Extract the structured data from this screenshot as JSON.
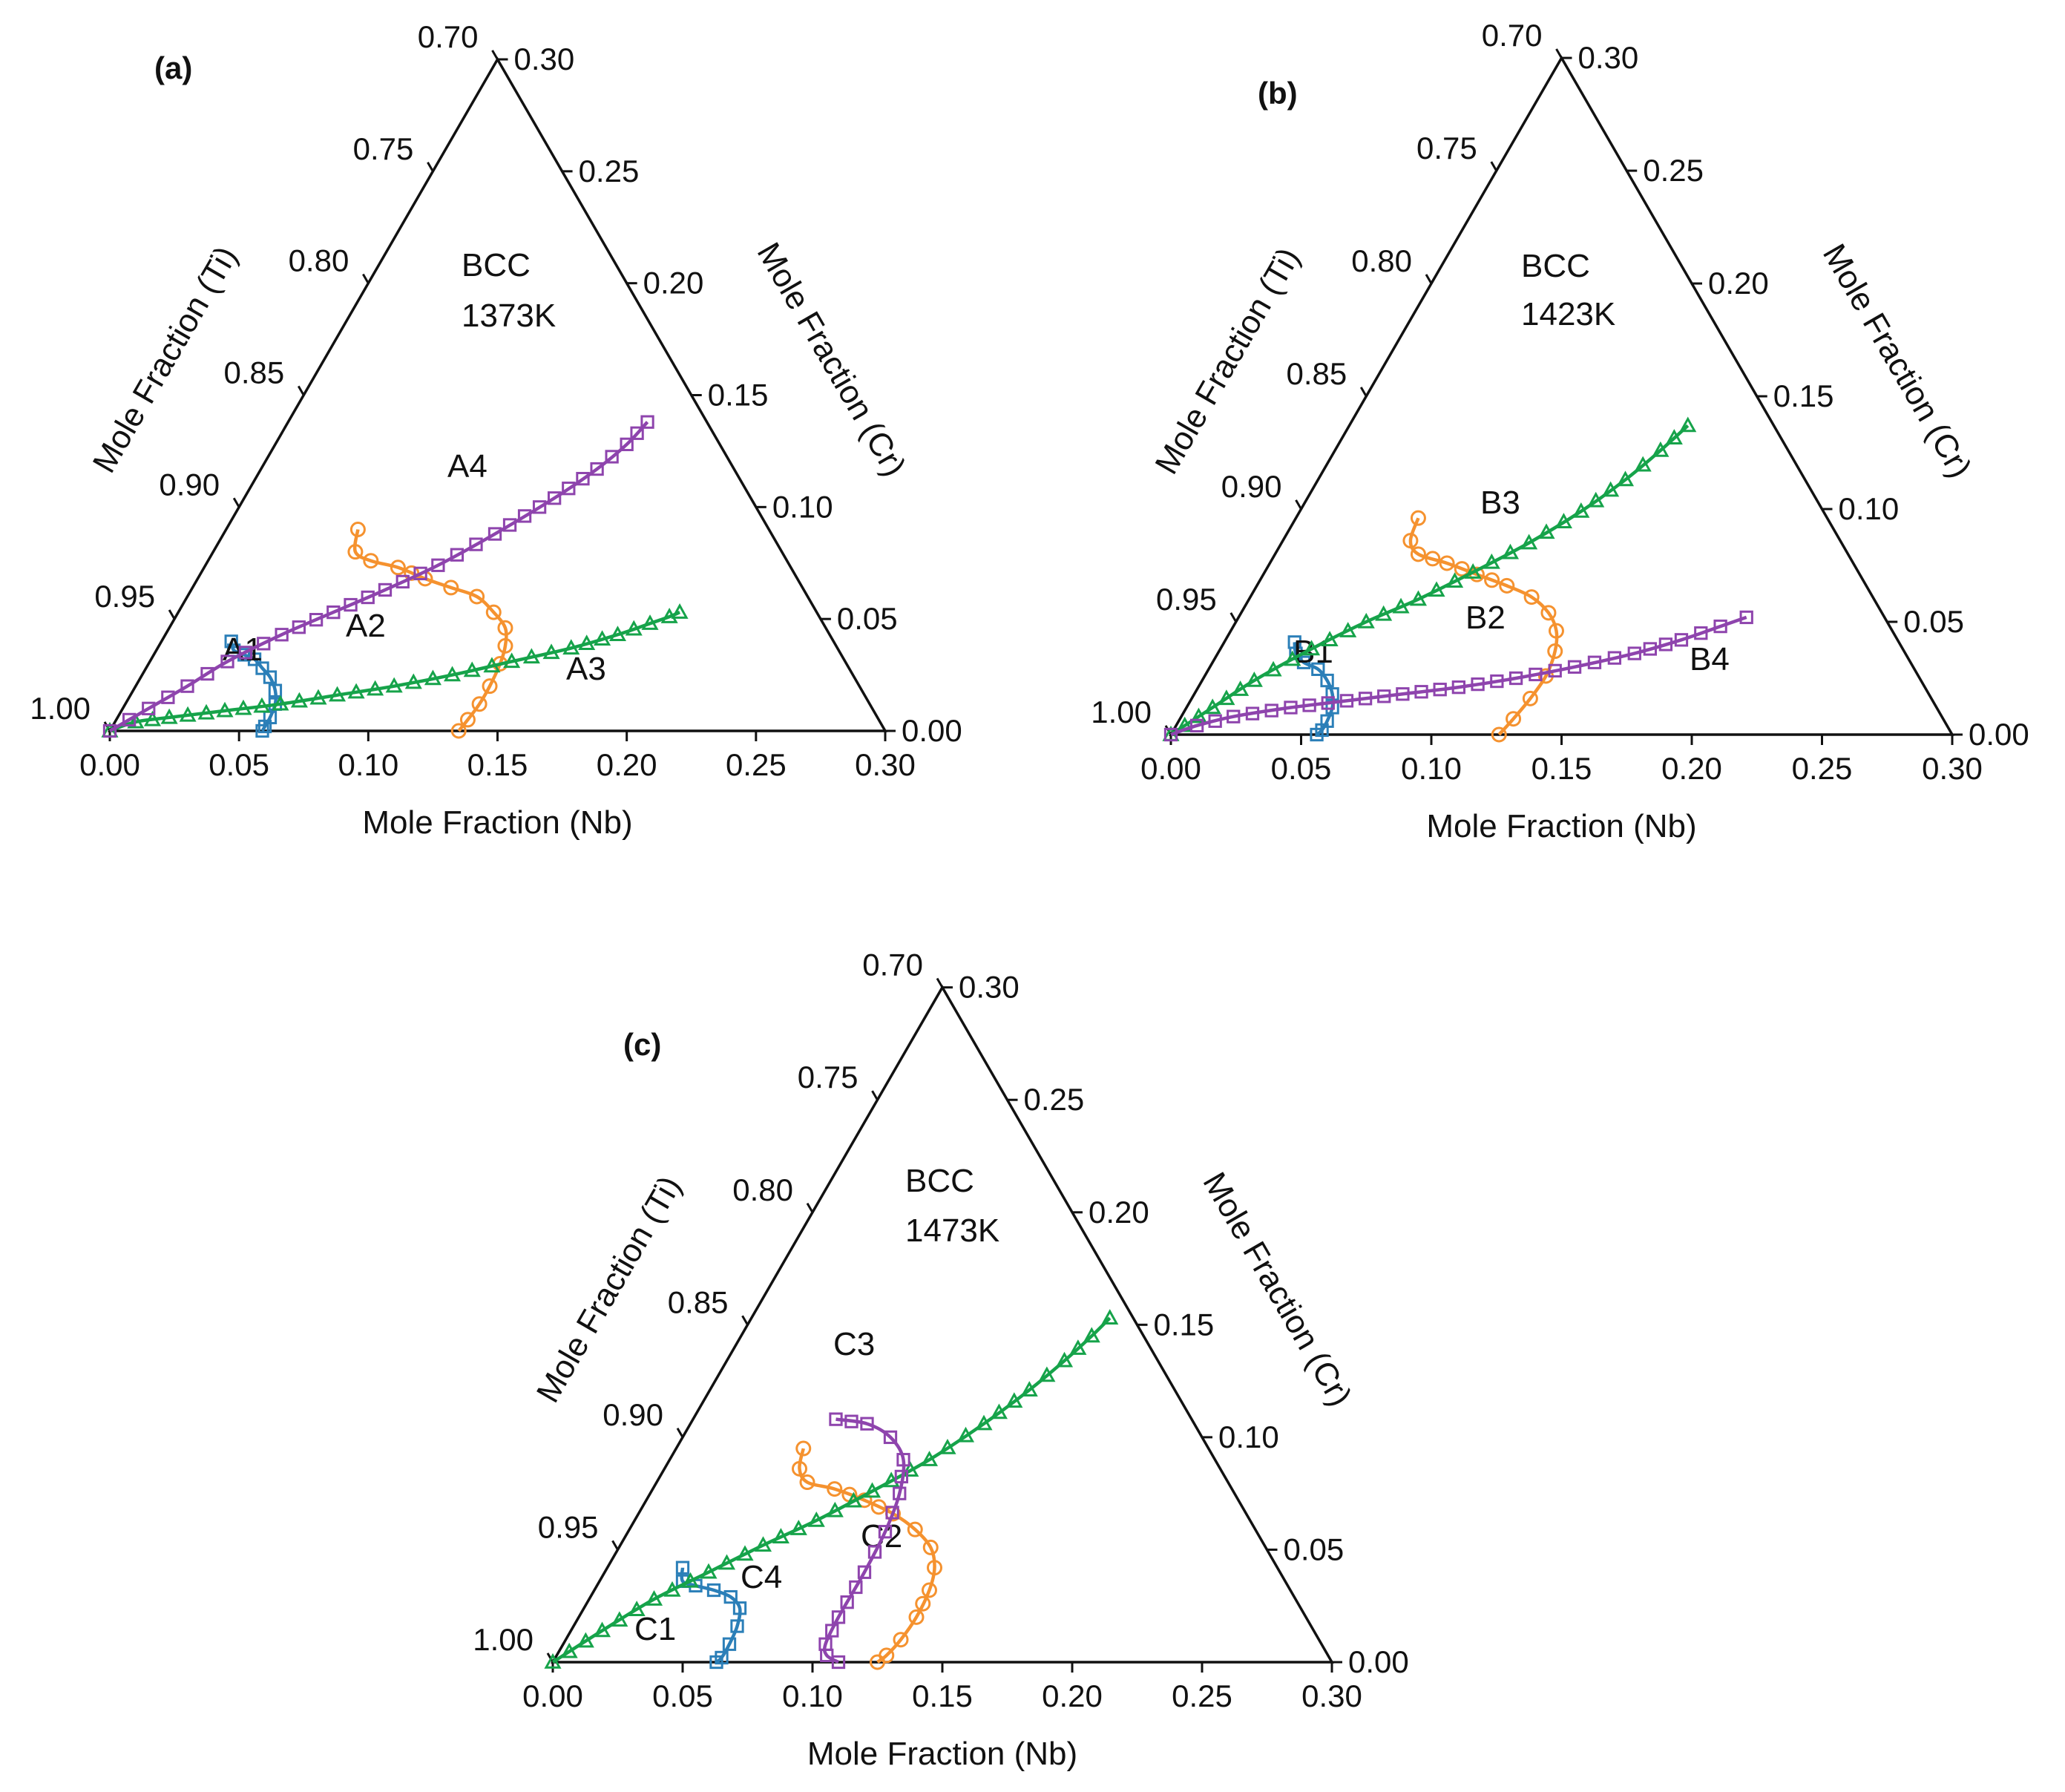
{
  "figure": {
    "colors": {
      "blue": "#2b7fb8",
      "orange": "#f5922f",
      "green": "#16a34a",
      "purple": "#8e44ad",
      "axis": "#111111"
    },
    "x_axis_title": "Mole Fraction (Nb)",
    "left_axis_title": "Mole Fraction (Ti)",
    "right_axis_title": "Mole Fraction (Cr)",
    "x_ticks": [
      "0.00",
      "0.05",
      "0.10",
      "0.15",
      "0.20",
      "0.25",
      "0.30"
    ],
    "left_ticks": [
      "1.00",
      "0.95",
      "0.90",
      "0.85",
      "0.80",
      "0.75",
      "0.70"
    ],
    "right_ticks": [
      "0.00",
      "0.05",
      "0.10",
      "0.15",
      "0.20",
      "0.25",
      "0.30"
    ]
  },
  "chart_data": [
    {
      "type": "ternary-line",
      "panel_label": "(a)",
      "phase": "BCC",
      "temperature": "1373K",
      "axes": {
        "nb_range": [
          0,
          0.3
        ],
        "cr_range": [
          0,
          0.3
        ],
        "ti_range": [
          0.7,
          1.0
        ]
      },
      "series": [
        {
          "name": "A1",
          "color": "blue",
          "marker": "square",
          "points": [
            [
              0.027,
              0.04
            ],
            [
              0.03,
              0.036
            ],
            [
              0.035,
              0.034
            ],
            [
              0.04,
              0.032
            ],
            [
              0.045,
              0.028
            ],
            [
              0.05,
              0.024
            ],
            [
              0.055,
              0.018
            ],
            [
              0.058,
              0.012
            ],
            [
              0.059,
              0.006
            ],
            [
              0.059,
              0.002
            ],
            [
              0.059,
              0.0
            ]
          ]
        },
        {
          "name": "A2",
          "color": "orange",
          "marker": "circle",
          "points": [
            [
              0.051,
              0.09
            ],
            [
              0.055,
              0.08
            ],
            [
              0.063,
              0.076
            ],
            [
              0.075,
              0.073
            ],
            [
              0.088,
              0.068
            ],
            [
              0.1,
              0.064
            ],
            [
              0.112,
              0.06
            ],
            [
              0.122,
              0.053
            ],
            [
              0.13,
              0.046
            ],
            [
              0.134,
              0.038
            ],
            [
              0.136,
              0.03
            ],
            [
              0.137,
              0.02
            ],
            [
              0.137,
              0.012
            ],
            [
              0.136,
              0.005
            ],
            [
              0.135,
              0.0
            ]
          ]
        },
        {
          "name": "A3",
          "color": "green",
          "marker": "triangle",
          "points": [
            [
              0.0,
              0.0
            ],
            [
              0.008,
              0.004
            ],
            [
              0.02,
              0.006
            ],
            [
              0.04,
              0.009
            ],
            [
              0.06,
              0.012
            ],
            [
              0.08,
              0.016
            ],
            [
              0.1,
              0.02
            ],
            [
              0.12,
              0.025
            ],
            [
              0.14,
              0.031
            ],
            [
              0.16,
              0.037
            ],
            [
              0.175,
              0.043
            ],
            [
              0.185,
              0.048
            ],
            [
              0.191,
              0.051
            ],
            [
              0.194,
              0.053
            ]
          ]
        },
        {
          "name": "A4",
          "color": "purple",
          "marker": "square",
          "points": [
            [
              0.0,
              0.0
            ],
            [
              0.01,
              0.01
            ],
            [
              0.02,
              0.02
            ],
            [
              0.03,
              0.031
            ],
            [
              0.045,
              0.043
            ],
            [
              0.06,
              0.053
            ],
            [
              0.075,
              0.063
            ],
            [
              0.09,
              0.074
            ],
            [
              0.105,
              0.088
            ],
            [
              0.12,
              0.104
            ],
            [
              0.13,
              0.117
            ],
            [
              0.136,
              0.128
            ],
            [
              0.139,
              0.138
            ]
          ]
        }
      ]
    },
    {
      "type": "ternary-line",
      "panel_label": "(b)",
      "phase": "BCC",
      "temperature": "1423K",
      "axes": {
        "nb_range": [
          0,
          0.3
        ],
        "cr_range": [
          0,
          0.3
        ],
        "ti_range": [
          0.7,
          1.0
        ]
      },
      "series": [
        {
          "name": "B1",
          "color": "blue",
          "marker": "square",
          "points": [
            [
              0.027,
              0.041
            ],
            [
              0.03,
              0.036
            ],
            [
              0.035,
              0.032
            ],
            [
              0.042,
              0.029
            ],
            [
              0.048,
              0.024
            ],
            [
              0.053,
              0.018
            ],
            [
              0.056,
              0.012
            ],
            [
              0.057,
              0.006
            ],
            [
              0.057,
              0.002
            ],
            [
              0.056,
              0.0
            ]
          ]
        },
        {
          "name": "B2",
          "color": "orange",
          "marker": "circle",
          "points": [
            [
              0.047,
              0.096
            ],
            [
              0.049,
              0.086
            ],
            [
              0.055,
              0.08
            ],
            [
              0.068,
              0.076
            ],
            [
              0.082,
              0.071
            ],
            [
              0.096,
              0.066
            ],
            [
              0.108,
              0.061
            ],
            [
              0.118,
              0.054
            ],
            [
              0.125,
              0.046
            ],
            [
              0.129,
              0.037
            ],
            [
              0.131,
              0.026
            ],
            [
              0.13,
              0.016
            ],
            [
              0.128,
              0.007
            ],
            [
              0.126,
              0.0
            ]
          ]
        },
        {
          "name": "B3",
          "color": "green",
          "marker": "triangle",
          "points": [
            [
              0.0,
              0.0
            ],
            [
              0.01,
              0.012
            ],
            [
              0.02,
              0.024
            ],
            [
              0.035,
              0.038
            ],
            [
              0.05,
              0.05
            ],
            [
              0.065,
              0.06
            ],
            [
              0.08,
              0.072
            ],
            [
              0.095,
              0.085
            ],
            [
              0.108,
              0.099
            ],
            [
              0.118,
              0.113
            ],
            [
              0.125,
              0.126
            ],
            [
              0.13,
              0.137
            ]
          ]
        },
        {
          "name": "B4",
          "color": "purple",
          "marker": "square",
          "points": [
            [
              0.0,
              0.0
            ],
            [
              0.008,
              0.004
            ],
            [
              0.02,
              0.008
            ],
            [
              0.04,
              0.012
            ],
            [
              0.06,
              0.015
            ],
            [
              0.08,
              0.018
            ],
            [
              0.1,
              0.021
            ],
            [
              0.12,
              0.025
            ],
            [
              0.14,
              0.03
            ],
            [
              0.16,
              0.036
            ],
            [
              0.175,
              0.042
            ],
            [
              0.187,
              0.048
            ],
            [
              0.195,
              0.052
            ]
          ]
        }
      ]
    },
    {
      "type": "ternary-line",
      "panel_label": "(c)",
      "phase": "BCC",
      "temperature": "1473K",
      "axes": {
        "nb_range": [
          0,
          0.3
        ],
        "cr_range": [
          0,
          0.3
        ],
        "ti_range": [
          0.7,
          1.0
        ]
      },
      "series": [
        {
          "name": "C1",
          "color": "blue",
          "marker": "square",
          "points": [
            [
              0.029,
              0.042
            ],
            [
              0.032,
              0.036
            ],
            [
              0.038,
              0.034
            ],
            [
              0.046,
              0.032
            ],
            [
              0.054,
              0.029
            ],
            [
              0.06,
              0.024
            ],
            [
              0.063,
              0.016
            ],
            [
              0.064,
              0.008
            ],
            [
              0.064,
              0.002
            ],
            [
              0.063,
              0.0
            ]
          ]
        },
        {
          "name": "C2",
          "color": "orange",
          "marker": "circle",
          "points": [
            [
              0.049,
              0.095
            ],
            [
              0.052,
              0.086
            ],
            [
              0.058,
              0.08
            ],
            [
              0.07,
              0.077
            ],
            [
              0.084,
              0.072
            ],
            [
              0.098,
              0.066
            ],
            [
              0.11,
              0.059
            ],
            [
              0.12,
              0.051
            ],
            [
              0.126,
              0.042
            ],
            [
              0.129,
              0.032
            ],
            [
              0.13,
              0.02
            ],
            [
              0.129,
              0.01
            ],
            [
              0.127,
              0.003
            ],
            [
              0.125,
              0.0
            ]
          ]
        },
        {
          "name": "C3",
          "color": "green",
          "marker": "triangle",
          "points": [
            [
              0.0,
              0.0
            ],
            [
              0.012,
              0.014
            ],
            [
              0.025,
              0.028
            ],
            [
              0.04,
              0.04
            ],
            [
              0.055,
              0.052
            ],
            [
              0.07,
              0.063
            ],
            [
              0.085,
              0.076
            ],
            [
              0.1,
              0.09
            ],
            [
              0.113,
              0.106
            ],
            [
              0.123,
              0.121
            ],
            [
              0.13,
              0.134
            ],
            [
              0.135,
              0.145
            ],
            [
              0.138,
              0.153
            ]
          ]
        },
        {
          "name": "C4",
          "color": "purple",
          "marker": "square",
          "points": [
            [
              0.055,
              0.108
            ],
            [
              0.068,
              0.106
            ],
            [
              0.08,
              0.1
            ],
            [
              0.09,
              0.09
            ],
            [
              0.096,
              0.075
            ],
            [
              0.099,
              0.058
            ],
            [
              0.1,
              0.04
            ],
            [
              0.1,
              0.02
            ],
            [
              0.101,
              0.008
            ],
            [
              0.104,
              0.003
            ],
            [
              0.11,
              0.0
            ]
          ]
        }
      ]
    }
  ]
}
